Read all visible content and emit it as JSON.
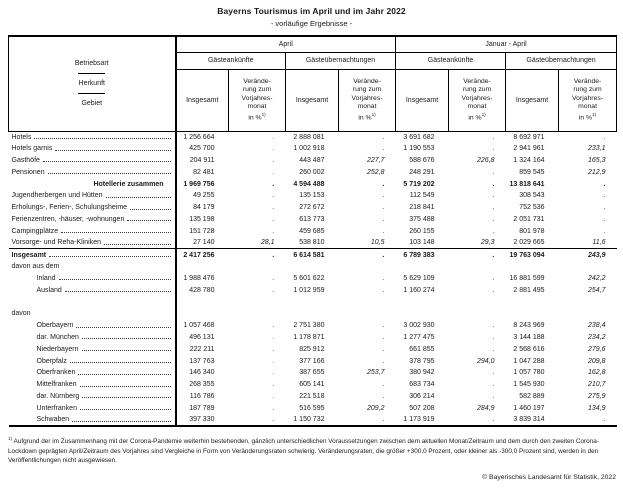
{
  "title": "Bayerns Tourismus im April und im Jahr 2022",
  "subtitle": "- vorläufige Ergebnisse -",
  "table": {
    "header": {
      "stub": [
        "Betriebsart",
        "Herkunft",
        "Gebiet"
      ],
      "groups": [
        "April",
        "Januar - April"
      ],
      "subgroups": [
        "Gästeankünfte",
        "Gästeübernachtungen"
      ],
      "total_label": "Insgesamt",
      "change_label_lines": [
        "Verände-",
        "rung zum",
        "Vorjahres-",
        "monat"
      ],
      "change_unit": "in %",
      "footnote_marker": "1)"
    },
    "rows": [
      {
        "label": "Hotels",
        "dots": true,
        "values": [
          "1 256 664",
          ".",
          "2 888 081",
          ".",
          "3 691 682",
          ".",
          "8 692 971",
          "."
        ]
      },
      {
        "label": "Hotels garnis",
        "dots": true,
        "values": [
          "425 700",
          ".",
          "1 002 918",
          ".",
          "1 190 553",
          ".",
          "2 941 961",
          "233,1"
        ]
      },
      {
        "label": "Gasthöfe",
        "dots": true,
        "values": [
          "204 911",
          ".",
          "443 487",
          "227,7",
          "588 676",
          "226,8",
          "1 324 164",
          "165,3"
        ]
      },
      {
        "label": "Pensionen",
        "dots": true,
        "values": [
          "82 481",
          ".",
          "260 002",
          "252,8",
          "248 291",
          ".",
          "859 545",
          "212,9"
        ]
      },
      {
        "label": "Hotellerie zusammen",
        "bold": true,
        "align_right": true,
        "values": [
          "1 969 756",
          ".",
          "4 594 488",
          ".",
          "5 719 202",
          ".",
          "13 818 641",
          "."
        ]
      },
      {
        "label": "Jugendherbergen und Hütten",
        "dots": true,
        "values": [
          "49 255",
          ".",
          "135 153",
          ".",
          "112 549",
          ".",
          "308 543",
          "."
        ]
      },
      {
        "label": "Erholungs-, Ferien-, Schulungsheime",
        "dots": true,
        "values": [
          "84 179",
          ".",
          "272 672",
          ".",
          "218 841",
          ".",
          "752 536",
          "."
        ]
      },
      {
        "label": "Ferienzentren, -häuser, -wohnungen",
        "dots": true,
        "values": [
          "135 198",
          ".",
          "613 773",
          ".",
          "375 488",
          ".",
          "2 051 731",
          "."
        ]
      },
      {
        "label": "Campingplätze",
        "dots": true,
        "values": [
          "151 728",
          ".",
          "459 685",
          ".",
          "260 155",
          ".",
          "801 978",
          "."
        ]
      },
      {
        "label": "Vorsorge- und Reha-Kliniken",
        "dots": true,
        "values": [
          "27 140",
          "28,1",
          "538 810",
          "10,5",
          "103 148",
          "29,3",
          "2 029 665",
          "11,6"
        ]
      },
      {
        "label": "Insgesamt",
        "bold": true,
        "dots": true,
        "sep_top": true,
        "values": [
          "2 417 256",
          ".",
          "6 614 581",
          ".",
          "6 789 383",
          ".",
          "19 763 094",
          "243,9"
        ]
      },
      {
        "label": "davon aus dem",
        "values": null
      },
      {
        "label": "Inland",
        "indent": 1,
        "dots": true,
        "values": [
          "1 988 476",
          ".",
          "5 601 622",
          ".",
          "5 629 109",
          ".",
          "16 881 599",
          "242,2"
        ]
      },
      {
        "label": "Ausland",
        "indent": 1,
        "dots": true,
        "values": [
          "428 780",
          ".",
          "1 012 959",
          ".",
          "1 160 274",
          ".",
          "2 881 495",
          "254,7"
        ]
      },
      {
        "spacer": true
      },
      {
        "label": "davon",
        "values": null
      },
      {
        "label": "Oberbayern",
        "indent": 1,
        "dots": true,
        "values": [
          "1 057 468",
          ".",
          "2 751 380",
          ".",
          "3 002 930",
          ".",
          "8 243 969",
          "238,4"
        ]
      },
      {
        "label": "dar. München",
        "indent": 1,
        "dots": true,
        "values": [
          "496 131",
          ".",
          "1 178 871",
          ".",
          "1 277 475",
          ".",
          "3 144 188",
          "234,2"
        ]
      },
      {
        "label": "Niederbayern",
        "indent": 1,
        "dots": true,
        "values": [
          "222 211",
          ".",
          "825 912",
          ".",
          "661 855",
          ".",
          "2 568 616",
          "279,6"
        ]
      },
      {
        "label": "Oberpfalz",
        "indent": 1,
        "dots": true,
        "values": [
          "137 763",
          ".",
          "377 166",
          ".",
          "378 795",
          "294,0",
          "1 047 288",
          "209,8"
        ]
      },
      {
        "label": "Oberfranken",
        "indent": 1,
        "dots": true,
        "values": [
          "146 340",
          ".",
          "387 655",
          "253,7",
          "380 942",
          ".",
          "1 057 780",
          "162,8"
        ]
      },
      {
        "label": "Mittelfranken",
        "indent": 1,
        "dots": true,
        "values": [
          "268 355",
          ".",
          "605 141",
          ".",
          "683 734",
          ".",
          "1 545 930",
          "210,7"
        ]
      },
      {
        "label": "dar. Nürnberg",
        "indent": 1,
        "dots": true,
        "values": [
          "116 786",
          ".",
          "221 518",
          ".",
          "306 214",
          ".",
          "582 889",
          "275,9"
        ]
      },
      {
        "label": "Unterfranken",
        "indent": 1,
        "dots": true,
        "values": [
          "187 789",
          ".",
          "516 595",
          "209,2",
          "507 208",
          "284,9",
          "1 460 197",
          "134,9"
        ]
      },
      {
        "label": "Schwaben",
        "indent": 1,
        "dots": true,
        "values": [
          "397 330",
          ".",
          "1 150 732",
          ".",
          "1 173 919",
          ".",
          "3 839 314",
          "."
        ]
      }
    ]
  },
  "footnote": {
    "marker": "1)",
    "text": "Aufgrund der im Zusammenhang mit der Corona-Pandemie weiterhin bestehenden, gänzlich unterschiedlichen Voraussetzungen zwischen dem aktuellen Monat/Zeitraum und dem durch den zweiten Corona-Lockdown geprägten April/Zeitraum des Vorjahres sind Vergleiche in Form von Veränderungsraten schwierig. Veränderungsraten, die größer +300,0 Prozent, oder kleiner als -300,0 Prozent sind, werden in den Veröffentlichungen nicht ausgewiesen."
  },
  "copyright": "© Bayerisches Landesamt für Statistik, 2022"
}
